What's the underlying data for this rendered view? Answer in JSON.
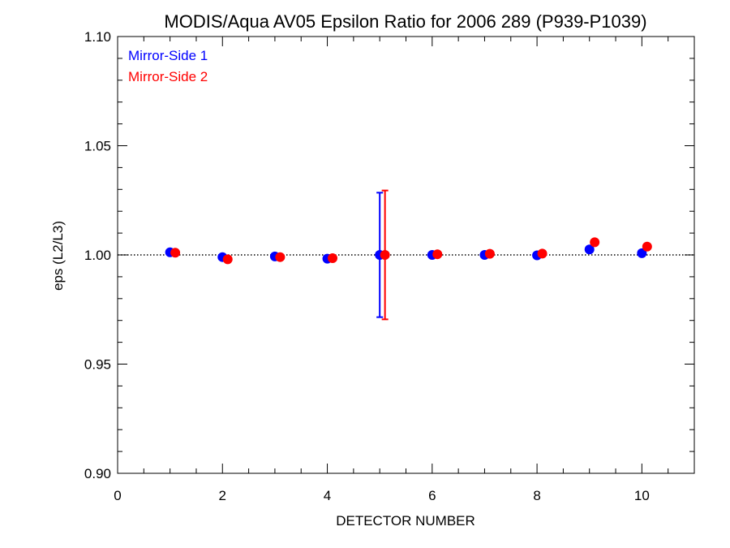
{
  "chart_data": {
    "type": "scatter",
    "title": "MODIS/Aqua AV05 Epsilon Ratio for 2006 289 (P939-P1039)",
    "xlabel": "DETECTOR NUMBER",
    "ylabel": "eps (L2/L3)",
    "xlim": [
      0,
      11
    ],
    "ylim": [
      0.9,
      1.1
    ],
    "x_ticks": [
      0,
      2,
      4,
      6,
      8,
      10
    ],
    "x_tick_labels": [
      "0",
      "2",
      "4",
      "6",
      "8",
      "10"
    ],
    "y_ticks": [
      0.9,
      0.95,
      1.0,
      1.05,
      1.1
    ],
    "y_tick_labels": [
      "0.90",
      "0.95",
      "1.00",
      "1.05",
      "1.10"
    ],
    "reference_line": {
      "y": 1.0,
      "style": "dotted",
      "color": "#000000"
    },
    "legend": {
      "position": "top-left"
    },
    "grid": false,
    "series": [
      {
        "name": "Mirror-Side 1",
        "color": "#0000ff",
        "x": [
          1,
          2,
          3,
          4,
          5,
          6,
          7,
          8,
          9,
          10
        ],
        "y": [
          1.0012,
          0.999,
          0.9993,
          0.9983,
          1.0,
          1.0,
          1.0,
          0.9998,
          1.0025,
          1.0008
        ],
        "error_bars": [
          {
            "x": 5,
            "low": 0.9715,
            "high": 1.0285
          }
        ]
      },
      {
        "name": "Mirror-Side 2",
        "color": "#ff0000",
        "x": [
          1.1,
          2.1,
          3.1,
          4.1,
          5.1,
          6.1,
          7.1,
          8.1,
          9.1,
          10.1
        ],
        "y": [
          1.001,
          0.998,
          0.999,
          0.9985,
          1.0,
          1.0003,
          1.0005,
          1.0006,
          1.0058,
          1.0038
        ],
        "error_bars": [
          {
            "x": 5.1,
            "low": 0.9705,
            "high": 1.0295
          }
        ]
      }
    ]
  }
}
